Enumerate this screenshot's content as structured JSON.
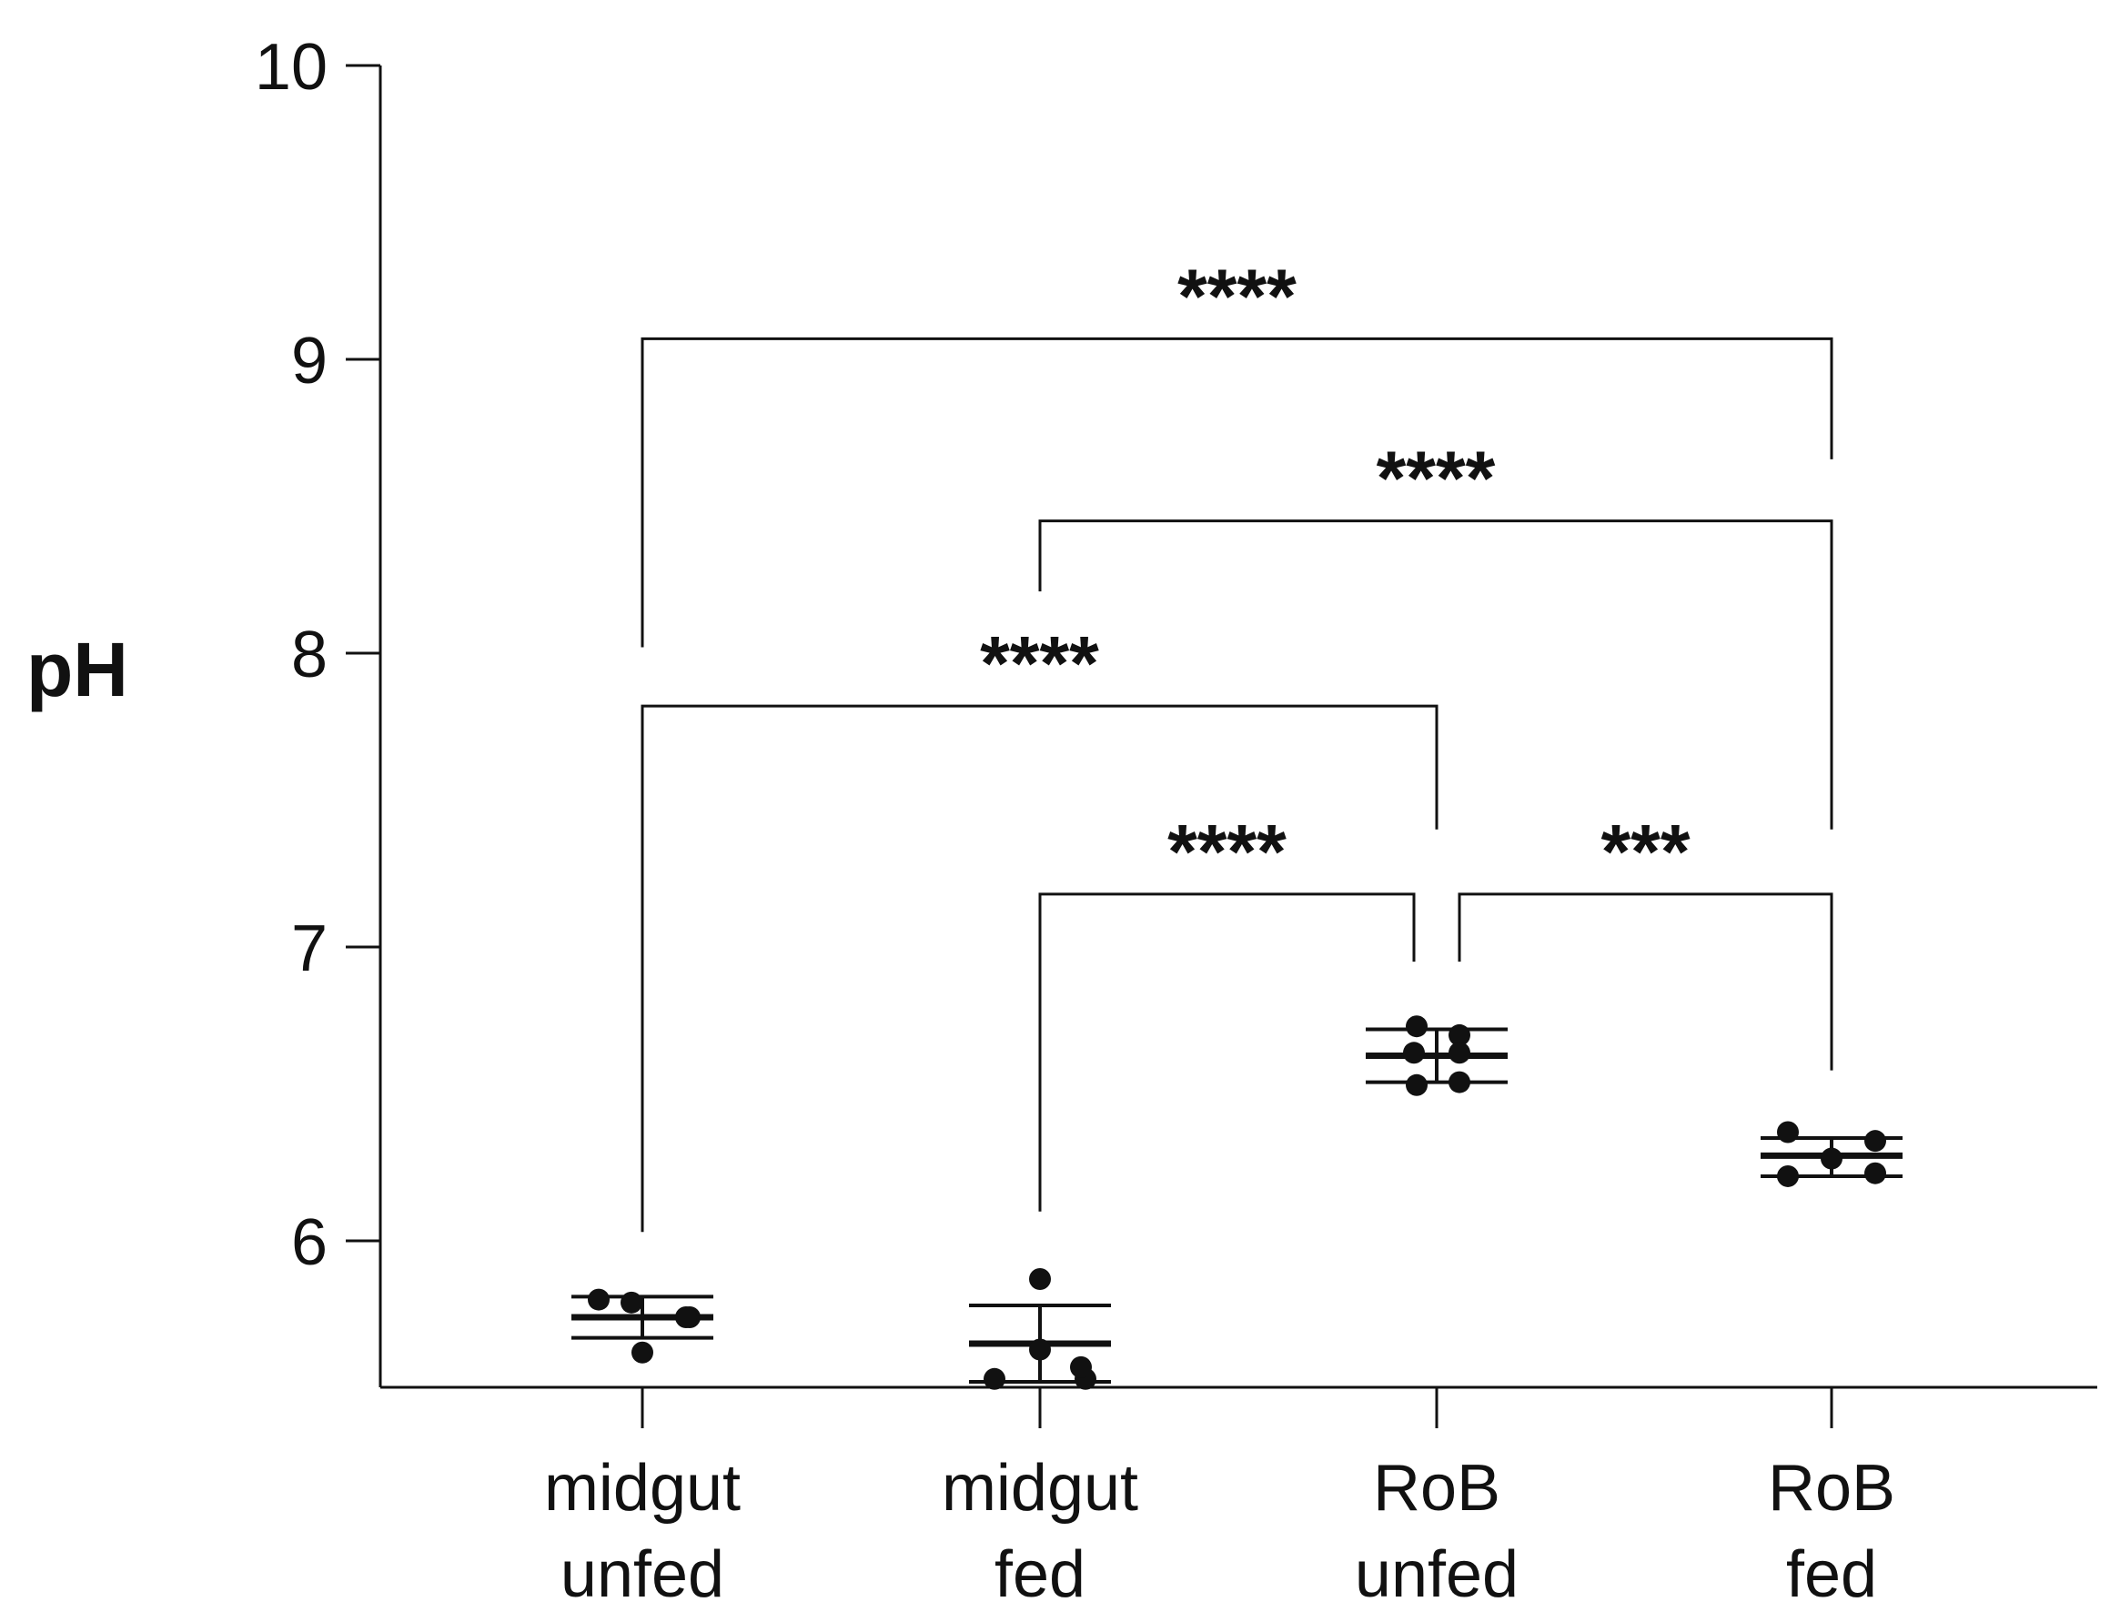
{
  "chart_data": {
    "type": "scatter",
    "ylabel": "pH",
    "xlabel": "",
    "title": "",
    "ylim": [
      5.5,
      10
    ],
    "yticks": [
      "6",
      "7",
      "8",
      "9",
      "10"
    ],
    "categories": [
      {
        "line1": "midgut",
        "line2": "unfed"
      },
      {
        "line1": "midgut",
        "line2": "fed"
      },
      {
        "line1": "RoB",
        "line2": "unfed"
      },
      {
        "line1": "RoB",
        "line2": "fed"
      }
    ],
    "groups": [
      {
        "points": [
          5.8,
          5.79,
          5.74,
          5.74,
          5.62
        ],
        "mean": 5.74,
        "upper": 5.81,
        "lower": 5.67
      },
      {
        "points": [
          5.87,
          5.63,
          5.53,
          5.53,
          5.57
        ],
        "mean": 5.65,
        "upper": 5.78,
        "lower": 5.52
      },
      {
        "points": [
          6.73,
          6.7,
          6.64,
          6.64,
          6.53,
          6.54
        ],
        "mean": 6.63,
        "upper": 6.72,
        "lower": 6.54
      },
      {
        "points": [
          6.37,
          6.34,
          6.28,
          6.22,
          6.23
        ],
        "mean": 6.29,
        "upper": 6.35,
        "lower": 6.22
      }
    ],
    "significance": [
      {
        "from": 0,
        "to": 3,
        "bar": 9.07,
        "left_end": 8.02,
        "right_end": 8.66,
        "label": "****"
      },
      {
        "from": 1,
        "to": 3,
        "bar": 8.45,
        "left_end": 8.21,
        "right_end": 7.4,
        "label": "****"
      },
      {
        "from": 0,
        "to": 2,
        "bar": 7.82,
        "left_end": 6.03,
        "right_end": 7.4,
        "label": "****"
      },
      {
        "from": 1,
        "to": 2,
        "bar": 7.18,
        "left_end": 6.1,
        "right_end": 6.95,
        "label": "****"
      },
      {
        "from": 2,
        "to": 3,
        "bar": 7.18,
        "left_end": 6.95,
        "right_end": 6.58,
        "label": "***"
      }
    ]
  }
}
